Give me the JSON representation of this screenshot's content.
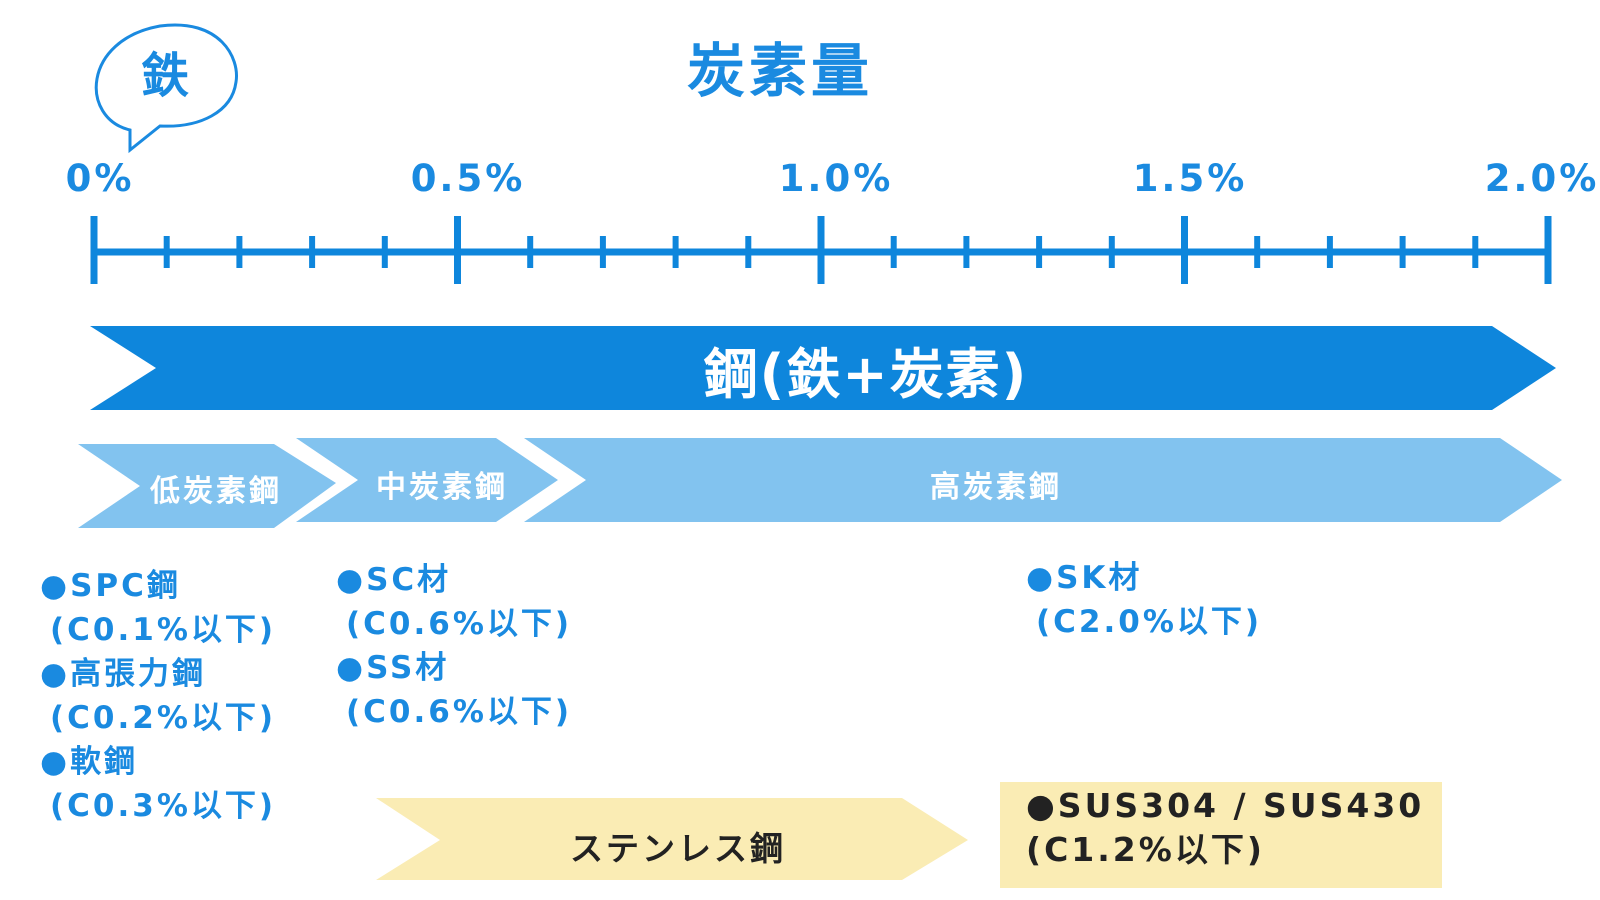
{
  "title": "炭素量",
  "bubble": "鉄",
  "axis": {
    "ticks": [
      "0%",
      "0.5%",
      "1.0%",
      "1.5%",
      "2.0%"
    ]
  },
  "steel": {
    "label": "鋼(鉄+炭素)"
  },
  "classes": {
    "low": "低炭素鋼",
    "mid": "中炭素鋼",
    "high": "高炭素鋼"
  },
  "examples": {
    "low": [
      {
        "name": "SPC鋼",
        "spec": "(C0.1%以下)"
      },
      {
        "name": "高張力鋼",
        "spec": "(C0.2%以下)"
      },
      {
        "name": "軟鋼",
        "spec": "(C0.3%以下)"
      }
    ],
    "mid": [
      {
        "name": "SC材",
        "spec": "(C0.6%以下)"
      },
      {
        "name": "SS材",
        "spec": "(C0.6%以下)"
      }
    ],
    "high": [
      {
        "name": "SK材",
        "spec": "(C2.0%以下)"
      }
    ]
  },
  "stainless": {
    "label": "ステンレス鋼",
    "name": "SUS304 / SUS430",
    "spec": "(C1.2%以下)"
  },
  "bullet": "●",
  "colors": {
    "primary": "#0e86dc",
    "light": "#82c3ef",
    "text_blue": "#1a8ae0",
    "stainless": "#faecb4"
  }
}
